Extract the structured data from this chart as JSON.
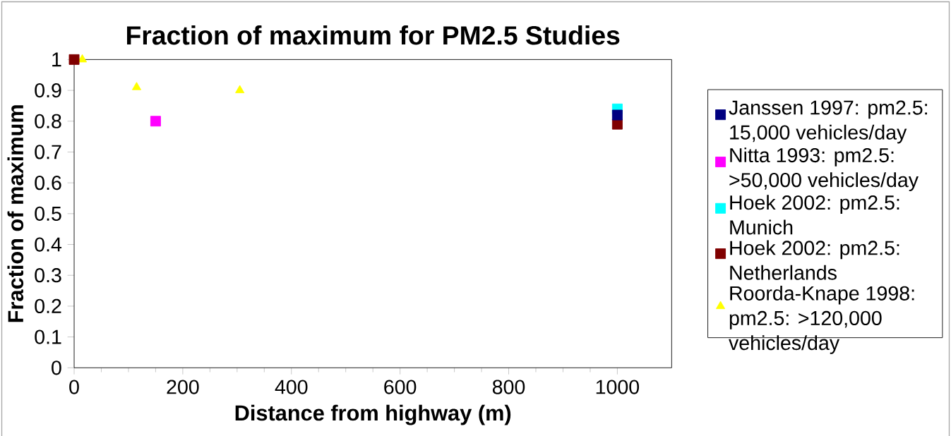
{
  "chart_data": {
    "type": "scatter",
    "title": "Fraction of maximum for PM2.5 Studies",
    "xlabel": "Distance from highway (m)",
    "ylabel": "Fraction of maximum",
    "xlim": [
      0,
      1100
    ],
    "xticks": [
      0,
      200,
      400,
      600,
      800,
      1000
    ],
    "ylim": [
      0,
      1
    ],
    "yticks": [
      0,
      0.1,
      0.2,
      0.3,
      0.4,
      0.5,
      0.6,
      0.7,
      0.8,
      0.9,
      1
    ],
    "grid": false,
    "legend": "right",
    "series": [
      {
        "name": "Janssen 1997: pm2.5: 15,000 vehicles/day",
        "color": "#000080",
        "marker": "square",
        "x": [
          1000
        ],
        "values": [
          0.82
        ]
      },
      {
        "name": "Nitta 1993: pm2.5: >50,000 vehicles/day",
        "color": "#ff00ff",
        "marker": "square",
        "x": [
          150
        ],
        "values": [
          0.8
        ]
      },
      {
        "name": "Hoek 2002: pm2.5: Munich",
        "color": "#00ffff",
        "marker": "square",
        "x": [
          1000
        ],
        "values": [
          0.84
        ]
      },
      {
        "name": "Hoek 2002: pm2.5: Netherlands",
        "color": "#800000",
        "marker": "square",
        "x": [
          0,
          1000
        ],
        "values": [
          1,
          0.79
        ]
      },
      {
        "name": "Roorda-Knape 1998: pm2.5: >120,000 vehicles/day",
        "color": "#ffff00",
        "marker": "triangle",
        "x": [
          15,
          115,
          305
        ],
        "values": [
          1,
          0.91,
          0.9
        ]
      }
    ]
  }
}
